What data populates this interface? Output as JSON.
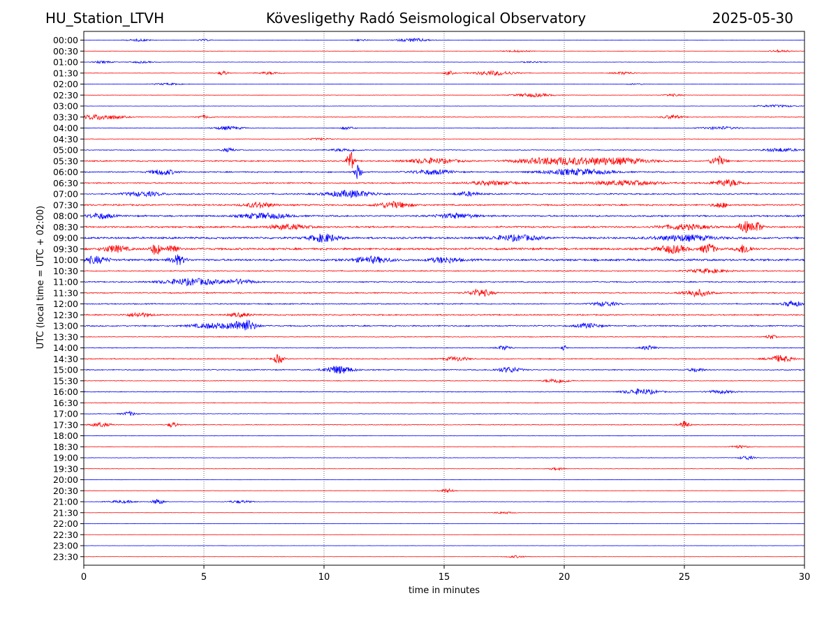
{
  "header": {
    "station": "HU_Station_LTVH",
    "observatory": "Kövesligethy Radó Seismological Observatory",
    "date": "2025-05-30"
  },
  "chart_data": {
    "type": "line",
    "title": "Kövesligethy Radó Seismological Observatory",
    "xlabel": "time in minutes",
    "ylabel": "UTC (local time = UTC + 02:00)",
    "xlim": [
      0,
      30
    ],
    "xticks": [
      "0",
      "5",
      "10",
      "15",
      "20",
      "25",
      "30"
    ],
    "grid": "vertical dotted at 5-minute intervals",
    "colors": [
      "#0000ff",
      "#ff0000"
    ],
    "rows": [
      {
        "label": "00:00",
        "amp": 0.25,
        "bursts": [
          [
            2.3,
            0.5,
            0.5
          ],
          [
            5.0,
            0.3,
            0.4
          ],
          [
            11.5,
            0.4,
            0.4
          ],
          [
            13.7,
            0.7,
            0.8
          ]
        ]
      },
      {
        "label": "00:30",
        "amp": 0.2,
        "bursts": [
          [
            18.0,
            0.6,
            0.4
          ],
          [
            29.0,
            0.4,
            0.6
          ]
        ]
      },
      {
        "label": "01:00",
        "amp": 0.3,
        "bursts": [
          [
            0.8,
            0.4,
            0.5
          ],
          [
            2.4,
            0.5,
            0.4
          ],
          [
            18.7,
            0.5,
            0.3
          ]
        ]
      },
      {
        "label": "01:30",
        "amp": 0.3,
        "bursts": [
          [
            5.8,
            0.2,
            1.0
          ],
          [
            7.7,
            0.5,
            0.6
          ],
          [
            15.2,
            0.2,
            0.9
          ],
          [
            17.1,
            0.9,
            1.0
          ],
          [
            22.5,
            0.5,
            0.6
          ]
        ]
      },
      {
        "label": "02:00",
        "amp": 0.25,
        "bursts": [
          [
            3.5,
            0.6,
            0.4
          ],
          [
            23.0,
            0.4,
            0.3
          ]
        ]
      },
      {
        "label": "02:30",
        "amp": 0.3,
        "bursts": [
          [
            18.7,
            0.8,
            0.8
          ],
          [
            24.5,
            0.4,
            0.5
          ]
        ]
      },
      {
        "label": "03:00",
        "amp": 0.25,
        "bursts": [
          [
            28.8,
            0.8,
            0.5
          ]
        ]
      },
      {
        "label": "03:30",
        "amp": 0.5,
        "bursts": [
          [
            0.7,
            0.9,
            1.2
          ],
          [
            5.0,
            0.3,
            0.7
          ],
          [
            24.5,
            0.4,
            0.9
          ]
        ]
      },
      {
        "label": "04:00",
        "amp": 0.5,
        "bursts": [
          [
            6.0,
            0.6,
            0.8
          ],
          [
            11.0,
            0.3,
            0.6
          ],
          [
            26.5,
            0.8,
            0.6
          ]
        ]
      },
      {
        "label": "04:30",
        "amp": 0.4,
        "bursts": [
          [
            9.8,
            0.6,
            0.4
          ]
        ]
      },
      {
        "label": "05:00",
        "amp": 0.6,
        "bursts": [
          [
            6.0,
            0.3,
            0.8
          ],
          [
            10.8,
            0.6,
            0.6
          ],
          [
            29.0,
            0.7,
            0.8
          ]
        ]
      },
      {
        "label": "05:30",
        "amp": 1.0,
        "bursts": [
          [
            11.1,
            0.15,
            4.5
          ],
          [
            14.5,
            1.0,
            1.2
          ],
          [
            19.5,
            1.5,
            1.5
          ],
          [
            22.0,
            1.5,
            1.5
          ],
          [
            26.4,
            0.3,
            2.2
          ]
        ]
      },
      {
        "label": "06:00",
        "amp": 1.0,
        "bursts": [
          [
            3.3,
            0.5,
            1.3
          ],
          [
            11.4,
            0.15,
            3.2
          ],
          [
            14.5,
            0.8,
            1.0
          ],
          [
            20.5,
            1.4,
            1.3
          ]
        ]
      },
      {
        "label": "06:30",
        "amp": 1.0,
        "bursts": [
          [
            17.0,
            1.0,
            0.9
          ],
          [
            22.5,
            1.5,
            1.0
          ],
          [
            26.8,
            0.6,
            1.5
          ]
        ]
      },
      {
        "label": "07:00",
        "amp": 1.0,
        "bursts": [
          [
            2.5,
            0.8,
            1.0
          ],
          [
            11.1,
            1.0,
            1.5
          ],
          [
            16.0,
            0.5,
            0.9
          ]
        ]
      },
      {
        "label": "07:30",
        "amp": 1.2,
        "bursts": [
          [
            7.3,
            0.6,
            1.2
          ],
          [
            12.9,
            0.7,
            1.4
          ],
          [
            26.5,
            0.3,
            1.2
          ]
        ]
      },
      {
        "label": "08:00",
        "amp": 1.3,
        "bursts": [
          [
            0.7,
            0.5,
            1.2
          ],
          [
            7.5,
            1.0,
            1.2
          ],
          [
            15.5,
            0.8,
            1.0
          ]
        ]
      },
      {
        "label": "08:30",
        "amp": 1.3,
        "bursts": [
          [
            8.5,
            0.8,
            1.1
          ],
          [
            25.0,
            1.0,
            1.1
          ],
          [
            27.5,
            0.2,
            2.8
          ],
          [
            28.0,
            0.25,
            2.2
          ]
        ]
      },
      {
        "label": "09:00",
        "amp": 1.5,
        "bursts": [
          [
            10.0,
            0.6,
            1.8
          ],
          [
            18.0,
            1.0,
            1.2
          ],
          [
            25.0,
            1.2,
            1.3
          ]
        ]
      },
      {
        "label": "09:30",
        "amp": 1.6,
        "bursts": [
          [
            1.3,
            0.5,
            1.5
          ],
          [
            3.0,
            0.2,
            2.6
          ],
          [
            3.7,
            0.2,
            2.6
          ],
          [
            24.5,
            0.6,
            1.7
          ],
          [
            26.0,
            0.3,
            2.2
          ],
          [
            27.5,
            0.3,
            2.0
          ]
        ]
      },
      {
        "label": "10:00",
        "amp": 1.6,
        "bursts": [
          [
            0.5,
            0.5,
            1.5
          ],
          [
            3.9,
            0.3,
            2.1
          ],
          [
            12.0,
            0.8,
            1.3
          ],
          [
            15.0,
            0.6,
            1.2
          ]
        ]
      },
      {
        "label": "10:30",
        "amp": 0.8,
        "bursts": [
          [
            26.0,
            0.8,
            0.9
          ]
        ]
      },
      {
        "label": "11:00",
        "amp": 0.9,
        "bursts": [
          [
            4.5,
            1.2,
            1.5
          ],
          [
            6.5,
            0.6,
            1.0
          ]
        ]
      },
      {
        "label": "11:30",
        "amp": 0.9,
        "bursts": [
          [
            16.5,
            0.5,
            1.6
          ],
          [
            25.5,
            0.6,
            1.5
          ]
        ]
      },
      {
        "label": "12:00",
        "amp": 0.9,
        "bursts": [
          [
            21.7,
            0.5,
            1.0
          ],
          [
            29.5,
            0.4,
            1.2
          ]
        ]
      },
      {
        "label": "12:30",
        "amp": 1.0,
        "bursts": [
          [
            2.3,
            0.5,
            1.0
          ],
          [
            6.5,
            0.5,
            0.8
          ]
        ]
      },
      {
        "label": "13:00",
        "amp": 1.0,
        "bursts": [
          [
            5.5,
            1.0,
            1.2
          ],
          [
            6.7,
            0.45,
            2.6
          ],
          [
            21.0,
            0.5,
            1.0
          ]
        ]
      },
      {
        "label": "13:30",
        "amp": 0.6,
        "bursts": [
          [
            28.6,
            0.2,
            1.0
          ]
        ]
      },
      {
        "label": "14:00",
        "amp": 0.6,
        "bursts": [
          [
            17.5,
            0.3,
            1.0
          ],
          [
            20.0,
            0.1,
            1.3
          ],
          [
            23.5,
            0.3,
            1.0
          ]
        ]
      },
      {
        "label": "14:30",
        "amp": 0.8,
        "bursts": [
          [
            8.1,
            0.2,
            2.0
          ],
          [
            15.5,
            0.5,
            0.9
          ],
          [
            29.0,
            0.5,
            1.5
          ]
        ]
      },
      {
        "label": "15:00",
        "amp": 0.8,
        "bursts": [
          [
            10.6,
            0.6,
            1.8
          ],
          [
            17.7,
            0.5,
            1.2
          ],
          [
            25.5,
            0.3,
            0.9
          ]
        ]
      },
      {
        "label": "15:30",
        "amp": 0.5,
        "bursts": [
          [
            19.7,
            0.5,
            1.0
          ]
        ]
      },
      {
        "label": "16:00",
        "amp": 0.6,
        "bursts": [
          [
            23.2,
            0.7,
            1.3
          ],
          [
            26.5,
            0.6,
            0.7
          ]
        ]
      },
      {
        "label": "16:30",
        "amp": 0.5,
        "bursts": []
      },
      {
        "label": "17:00",
        "amp": 0.5,
        "bursts": [
          [
            1.9,
            0.3,
            0.9
          ]
        ]
      },
      {
        "label": "17:30",
        "amp": 0.6,
        "bursts": [
          [
            0.7,
            0.4,
            1.0
          ],
          [
            3.7,
            0.2,
            1.2
          ],
          [
            25.0,
            0.2,
            1.8
          ]
        ]
      },
      {
        "label": "18:00",
        "amp": 0.4,
        "bursts": []
      },
      {
        "label": "18:30",
        "amp": 0.35,
        "bursts": [
          [
            27.3,
            0.4,
            0.6
          ]
        ]
      },
      {
        "label": "19:00",
        "amp": 0.4,
        "bursts": [
          [
            27.6,
            0.3,
            0.9
          ]
        ]
      },
      {
        "label": "19:30",
        "amp": 0.35,
        "bursts": [
          [
            19.7,
            0.3,
            0.6
          ]
        ]
      },
      {
        "label": "20:00",
        "amp": 0.25,
        "bursts": []
      },
      {
        "label": "20:30",
        "amp": 0.3,
        "bursts": [
          [
            15.1,
            0.3,
            0.9
          ]
        ]
      },
      {
        "label": "21:00",
        "amp": 0.3,
        "bursts": [
          [
            1.6,
            0.6,
            0.6
          ],
          [
            3.1,
            0.25,
            1.2
          ],
          [
            6.5,
            0.5,
            0.6
          ]
        ]
      },
      {
        "label": "21:30",
        "amp": 0.2,
        "bursts": [
          [
            17.5,
            0.4,
            0.5
          ]
        ]
      },
      {
        "label": "22:00",
        "amp": 0.2,
        "bursts": []
      },
      {
        "label": "22:30",
        "amp": 0.2,
        "bursts": []
      },
      {
        "label": "23:00",
        "amp": 0.2,
        "bursts": []
      },
      {
        "label": "23:30",
        "amp": 0.2,
        "bursts": [
          [
            18.0,
            0.4,
            0.5
          ]
        ]
      }
    ]
  }
}
